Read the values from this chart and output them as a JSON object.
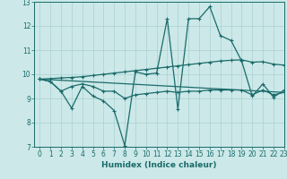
{
  "background_color": "#cce8e8",
  "grid_color": "#aad0d0",
  "line_color": "#1a6b6b",
  "xlabel": "Humidex (Indice chaleur)",
  "xlim": [
    -0.5,
    23
  ],
  "ylim": [
    7,
    13
  ],
  "yticks": [
    7,
    8,
    9,
    10,
    11,
    12,
    13
  ],
  "xticks": [
    0,
    1,
    2,
    3,
    4,
    5,
    6,
    7,
    8,
    9,
    10,
    11,
    12,
    13,
    14,
    15,
    16,
    17,
    18,
    19,
    20,
    21,
    22,
    23
  ],
  "series": [
    {
      "x": [
        0,
        1,
        2,
        3,
        4,
        5,
        6,
        7,
        8,
        9,
        10,
        11,
        12,
        13,
        14,
        15,
        16,
        17,
        18,
        19,
        20,
        21,
        22,
        23
      ],
      "y": [
        9.8,
        9.7,
        9.3,
        8.6,
        9.5,
        9.1,
        8.9,
        8.5,
        7.05,
        10.1,
        10.0,
        10.05,
        12.3,
        8.55,
        12.3,
        12.3,
        12.8,
        11.6,
        11.4,
        10.55,
        9.1,
        9.6,
        9.05,
        9.35
      ]
    },
    {
      "x": [
        0,
        1,
        2,
        3,
        4,
        5,
        6,
        7,
        8,
        9,
        10,
        11,
        12,
        13,
        14,
        15,
        16,
        17,
        18,
        19,
        20,
        21,
        22,
        23
      ],
      "y": [
        9.8,
        9.82,
        9.85,
        9.87,
        9.9,
        9.95,
        10.0,
        10.05,
        10.1,
        10.15,
        10.2,
        10.25,
        10.3,
        10.35,
        10.4,
        10.45,
        10.5,
        10.55,
        10.58,
        10.6,
        10.5,
        10.52,
        10.42,
        10.38
      ]
    },
    {
      "x": [
        0,
        1,
        2,
        3,
        4,
        5,
        6,
        7,
        8,
        9,
        10,
        11,
        12,
        13,
        14,
        15,
        16,
        17,
        18,
        19,
        20,
        21,
        22,
        23
      ],
      "y": [
        9.8,
        9.7,
        9.3,
        9.5,
        9.6,
        9.5,
        9.3,
        9.3,
        9.0,
        9.15,
        9.2,
        9.25,
        9.3,
        9.25,
        9.3,
        9.3,
        9.35,
        9.35,
        9.35,
        9.35,
        9.15,
        9.35,
        9.15,
        9.25
      ]
    },
    {
      "x": [
        0,
        23
      ],
      "y": [
        9.8,
        9.25
      ]
    }
  ]
}
